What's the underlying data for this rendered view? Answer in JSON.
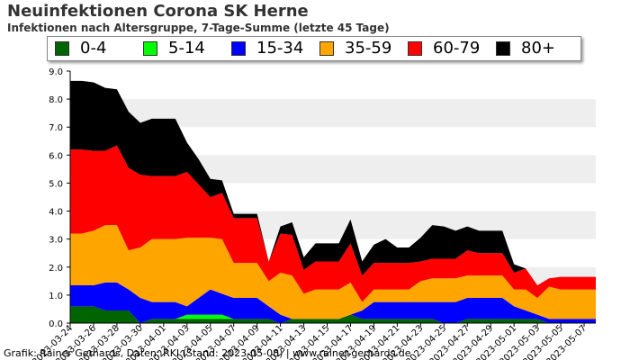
{
  "header": {
    "title": "Neuinfektionen Corona SK Herne",
    "subtitle": "Infektionen nach Altersgruppe, 7-Tage-Summe (letzte 45 Tage)"
  },
  "footer": {
    "credit": "Grafik: Rainer Gerhards, Daten: RKI (Stand: 2023-05-08) | www.rainer-gerhards.de"
  },
  "chart_data": {
    "type": "area",
    "stacked": true,
    "grid": true,
    "legend": "top",
    "ylim": [
      0,
      9
    ],
    "yticks": [
      "0.0",
      "1.0",
      "2.0",
      "3.0",
      "4.0",
      "5.0",
      "6.0",
      "7.0",
      "8.0",
      "9.0"
    ],
    "xticks": [
      "2023-03-24",
      "2023-03-26",
      "2023-03-28",
      "2023-03-30",
      "2023-04-01",
      "2023-04-03",
      "2023-04-05",
      "2023-04-07",
      "2023-04-09",
      "2023-04-11",
      "2023-04-13",
      "2023-04-15",
      "2023-04-17",
      "2023-04-19",
      "2023-04-21",
      "2023-04-23",
      "2023-04-25",
      "2023-04-27",
      "2023-04-29",
      "2023-05-01",
      "2023-05-03",
      "2023-05-05",
      "2023-05-07"
    ],
    "x": [
      "2023-03-24",
      "2023-03-25",
      "2023-03-26",
      "2023-03-27",
      "2023-03-28",
      "2023-03-29",
      "2023-03-30",
      "2023-03-31",
      "2023-04-01",
      "2023-04-02",
      "2023-04-03",
      "2023-04-04",
      "2023-04-05",
      "2023-04-06",
      "2023-04-07",
      "2023-04-08",
      "2023-04-09",
      "2023-04-10",
      "2023-04-11",
      "2023-04-12",
      "2023-04-13",
      "2023-04-14",
      "2023-04-15",
      "2023-04-16",
      "2023-04-17",
      "2023-04-18",
      "2023-04-19",
      "2023-04-20",
      "2023-04-21",
      "2023-04-22",
      "2023-04-23",
      "2023-04-24",
      "2023-04-25",
      "2023-04-26",
      "2023-04-27",
      "2023-04-28",
      "2023-04-29",
      "2023-04-30",
      "2023-05-01",
      "2023-05-02",
      "2023-05-03",
      "2023-05-04",
      "2023-05-05",
      "2023-05-06",
      "2023-05-07",
      "2023-05-08"
    ],
    "series": [
      {
        "name": "0-4",
        "color": "#006400",
        "values": [
          0.6,
          0.6,
          0.6,
          0.45,
          0.45,
          0.45,
          0.0,
          0.15,
          0.15,
          0.15,
          0.15,
          0.15,
          0.15,
          0.15,
          0.15,
          0.15,
          0.15,
          0.15,
          0.0,
          0.15,
          0.15,
          0.15,
          0.15,
          0.15,
          0.3,
          0.15,
          0.15,
          0.15,
          0.15,
          0.15,
          0.15,
          0.15,
          0.0,
          0.0,
          0.15,
          0.15,
          0.15,
          0.15,
          0.15,
          0.15,
          0.15,
          0.0,
          0.0,
          0.0,
          0.0,
          0.0
        ]
      },
      {
        "name": "5-14",
        "color": "#00ff00",
        "values": [
          0.0,
          0.0,
          0.0,
          0.0,
          0.0,
          0.0,
          0.0,
          0.0,
          0.0,
          0.0,
          0.15,
          0.15,
          0.15,
          0.15,
          0.0,
          0.0,
          0.0,
          0.0,
          0.0,
          0.0,
          0.0,
          0.0,
          0.0,
          0.0,
          0.0,
          0.0,
          0.0,
          0.0,
          0.0,
          0.0,
          0.0,
          0.0,
          0.0,
          0.0,
          0.0,
          0.0,
          0.0,
          0.0,
          0.0,
          0.0,
          0.0,
          0.0,
          0.0,
          0.0,
          0.0,
          0.0
        ]
      },
      {
        "name": "15-34",
        "color": "#0000ff",
        "values": [
          0.75,
          0.75,
          0.75,
          1.0,
          1.0,
          0.75,
          0.9,
          0.6,
          0.6,
          0.6,
          0.3,
          0.6,
          0.9,
          0.75,
          0.75,
          0.75,
          0.75,
          0.45,
          0.3,
          0.0,
          0.0,
          0.0,
          0.0,
          0.0,
          0.0,
          0.3,
          0.6,
          0.6,
          0.6,
          0.6,
          0.6,
          0.6,
          0.75,
          0.75,
          0.75,
          0.75,
          0.75,
          0.75,
          0.45,
          0.3,
          0.15,
          0.15,
          0.15,
          0.15,
          0.15,
          0.15
        ]
      },
      {
        "name": "35-59",
        "color": "#ffa500",
        "values": [
          1.85,
          1.85,
          1.95,
          2.05,
          2.05,
          1.4,
          1.8,
          2.25,
          2.25,
          2.25,
          2.45,
          2.15,
          1.85,
          1.95,
          1.25,
          1.25,
          1.25,
          0.9,
          1.5,
          1.55,
          0.9,
          1.05,
          1.05,
          1.05,
          1.15,
          0.3,
          0.45,
          0.45,
          0.45,
          0.45,
          0.75,
          0.85,
          0.85,
          0.85,
          0.8,
          0.8,
          0.8,
          0.8,
          0.6,
          0.75,
          0.6,
          1.15,
          1.05,
          1.05,
          1.05,
          1.05
        ]
      },
      {
        "name": "60-79",
        "color": "#ff0000",
        "values": [
          3.0,
          3.0,
          2.85,
          2.65,
          2.85,
          2.95,
          2.6,
          2.25,
          2.25,
          2.25,
          2.35,
          1.9,
          1.45,
          1.65,
          1.6,
          1.6,
          1.6,
          0.7,
          1.4,
          1.45,
          0.85,
          1.0,
          1.0,
          1.0,
          1.4,
          0.95,
          0.95,
          0.95,
          0.95,
          0.95,
          0.7,
          0.7,
          0.7,
          0.7,
          0.9,
          0.8,
          0.8,
          0.8,
          0.6,
          0.75,
          0.45,
          0.3,
          0.45,
          0.45,
          0.45,
          0.45
        ]
      },
      {
        "name": "80+",
        "color": "#000000",
        "values": [
          2.45,
          2.45,
          2.45,
          2.25,
          2.0,
          2.0,
          1.85,
          2.05,
          2.05,
          2.05,
          1.05,
          0.9,
          0.65,
          0.45,
          0.15,
          0.15,
          0.15,
          0.0,
          0.25,
          0.45,
          0.45,
          0.65,
          0.65,
          0.65,
          0.85,
          0.5,
          0.65,
          0.85,
          0.55,
          0.55,
          0.85,
          1.2,
          1.15,
          1.0,
          0.85,
          0.8,
          0.8,
          0.8,
          0.3,
          0.0,
          0.0,
          0.0,
          0.0,
          0.0,
          0.0,
          0.0
        ]
      }
    ]
  }
}
